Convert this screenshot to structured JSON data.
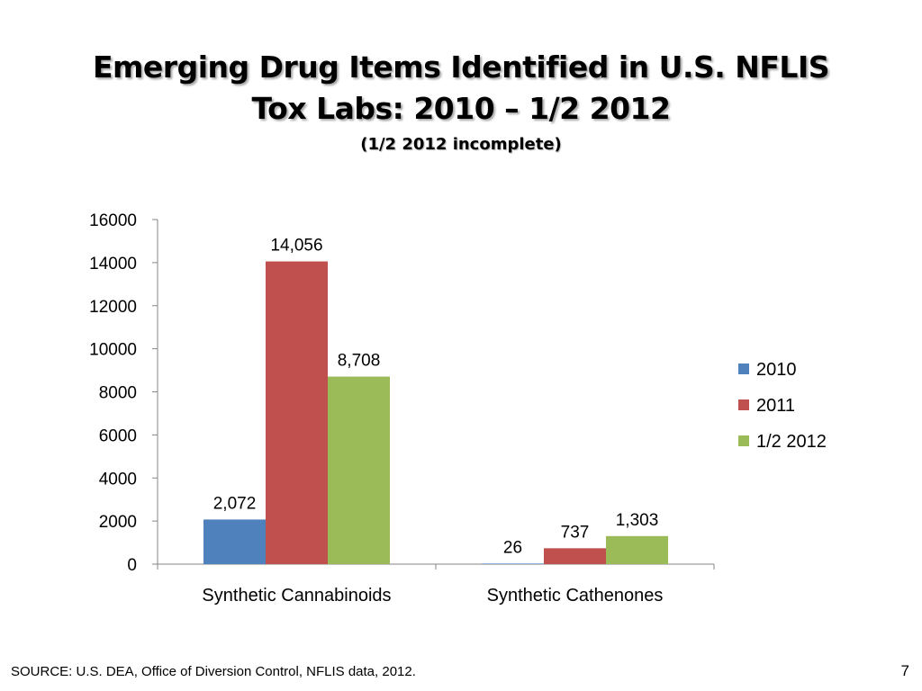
{
  "slide": {
    "title_line1": "Emerging Drug Items Identified in U.S. NFLIS",
    "title_line2": "Tox Labs: 2010 – 1/2 2012",
    "subtitle": "(1/2 2012 incomplete)",
    "source": "SOURCE: U.S. DEA, Office of Diversion Control,  NFLIS data, 2012.",
    "page_number": "7"
  },
  "chart_data": {
    "type": "bar",
    "categories": [
      "Synthetic Cannabinoids",
      "Synthetic Cathenones"
    ],
    "series": [
      {
        "name": "2010",
        "values": [
          2072,
          26
        ],
        "labels": [
          "2,072",
          "26"
        ],
        "color": "#4f81bd"
      },
      {
        "name": "2011",
        "values": [
          14056,
          737
        ],
        "labels": [
          "14,056",
          "737"
        ],
        "color": "#c0504d"
      },
      {
        "name": "1/2 2012",
        "values": [
          8708,
          1303
        ],
        "labels": [
          "8,708",
          "1,303"
        ],
        "color": "#9bbb59"
      }
    ],
    "ylim": [
      0,
      16000
    ],
    "yticks": [
      0,
      2000,
      4000,
      6000,
      8000,
      10000,
      12000,
      14000,
      16000
    ],
    "grid": false,
    "legend_position": "right",
    "xlabel": "",
    "ylabel": ""
  }
}
